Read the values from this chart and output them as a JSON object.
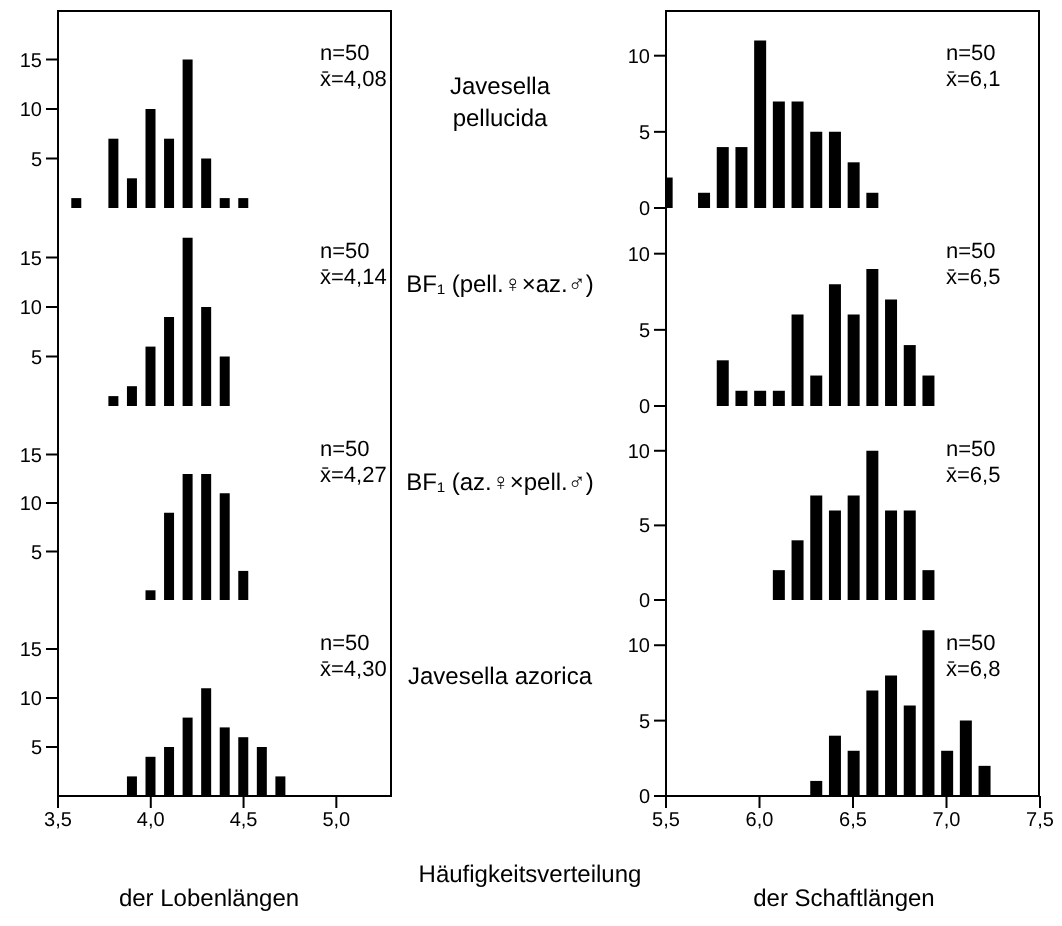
{
  "chart_data": [
    {
      "type": "bar",
      "annotations": [
        "n=50",
        "x̄=4,08"
      ],
      "x": [
        3.6,
        3.8,
        3.9,
        4.0,
        4.1,
        4.2,
        4.3,
        4.4,
        4.5
      ],
      "values": [
        1,
        7,
        3,
        10,
        7,
        15,
        5,
        1,
        1
      ],
      "color": "#000000",
      "xlim": [
        3.5,
        5.3
      ],
      "ylim": [
        0,
        20
      ],
      "yticks": [
        5,
        10,
        15
      ],
      "tick_labels": "y"
    },
    {
      "type": "bar",
      "title": "Javesella pellucida",
      "annotations": [
        "n=50",
        "x̄=6,1"
      ],
      "x": [
        5.5,
        5.7,
        5.8,
        5.9,
        6.0,
        6.1,
        6.2,
        6.3,
        6.4,
        6.5,
        6.6
      ],
      "values": [
        2,
        1,
        4,
        4,
        11,
        7,
        7,
        5,
        5,
        3,
        1
      ],
      "color": "#000000",
      "xlim": [
        5.5,
        7.5
      ],
      "ylim": [
        0,
        13
      ],
      "yticks": [
        0,
        5,
        10
      ],
      "tick_labels": "y"
    },
    {
      "type": "bar",
      "annotations": [
        "n=50",
        "x̄=4,14"
      ],
      "x": [
        3.8,
        3.9,
        4.0,
        4.1,
        4.2,
        4.3,
        4.4
      ],
      "values": [
        1,
        2,
        6,
        9,
        17,
        10,
        5
      ],
      "color": "#000000",
      "xlim": [
        3.5,
        5.3
      ],
      "ylim": [
        0,
        20
      ],
      "yticks": [
        5,
        10,
        15
      ],
      "tick_labels": "y"
    },
    {
      "type": "bar",
      "title": "BF₁ (pell.♀×az.♂)",
      "annotations": [
        "n=50",
        "x̄=6,5"
      ],
      "x": [
        5.8,
        5.9,
        6.0,
        6.1,
        6.2,
        6.3,
        6.4,
        6.5,
        6.6,
        6.7,
        6.8,
        6.9
      ],
      "values": [
        3,
        1,
        1,
        1,
        6,
        2,
        8,
        6,
        9,
        7,
        4,
        2
      ],
      "color": "#000000",
      "xlim": [
        5.5,
        7.5
      ],
      "ylim": [
        0,
        13
      ],
      "yticks": [
        0,
        5,
        10
      ],
      "tick_labels": "y"
    },
    {
      "type": "bar",
      "annotations": [
        "n=50",
        "x̄=4,27"
      ],
      "x": [
        4.0,
        4.1,
        4.2,
        4.3,
        4.4,
        4.5
      ],
      "values": [
        1,
        9,
        13,
        13,
        11,
        3
      ],
      "color": "#000000",
      "xlim": [
        3.5,
        5.3
      ],
      "ylim": [
        0,
        20
      ],
      "yticks": [
        5,
        10,
        15
      ],
      "tick_labels": "y"
    },
    {
      "type": "bar",
      "title": "BF₁ (az.♀×pell.♂)",
      "annotations": [
        "n=50",
        "x̄=6,5"
      ],
      "x": [
        6.1,
        6.2,
        6.3,
        6.4,
        6.5,
        6.6,
        6.7,
        6.8,
        6.9
      ],
      "values": [
        2,
        4,
        7,
        6,
        7,
        10,
        6,
        6,
        2
      ],
      "color": "#000000",
      "xlim": [
        5.5,
        7.5
      ],
      "ylim": [
        0,
        13
      ],
      "yticks": [
        0,
        5,
        10
      ],
      "tick_labels": "y"
    },
    {
      "type": "bar",
      "xlabel": "der Lobenlängen",
      "annotations": [
        "n=50",
        "x̄=4,30",
        "Häufigkeitsverteilung"
      ],
      "x": [
        3.9,
        4.0,
        4.1,
        4.2,
        4.3,
        4.4,
        4.5,
        4.6,
        4.7
      ],
      "values": [
        2,
        4,
        5,
        8,
        11,
        7,
        6,
        5,
        2
      ],
      "color": "#000000",
      "xlim": [
        3.5,
        5.3
      ],
      "ylim": [
        0,
        20
      ],
      "xticks": [
        {
          "value": 3.5,
          "label": "3,5"
        },
        {
          "value": 4.0,
          "label": "4,0"
        },
        {
          "value": 4.5,
          "label": "4,5"
        },
        {
          "value": 5.0,
          "label": "5,0"
        }
      ],
      "yticks": [
        5,
        10,
        15
      ]
    },
    {
      "type": "bar",
      "title": "Javesella azorica",
      "xlabel": "der Schaftlängen",
      "annotations": [
        "n=50",
        "x̄=6,8"
      ],
      "x": [
        6.3,
        6.4,
        6.5,
        6.6,
        6.7,
        6.8,
        6.9,
        7.0,
        7.1,
        7.2
      ],
      "values": [
        1,
        4,
        3,
        7,
        8,
        6,
        11,
        3,
        5,
        2
      ],
      "color": "#000000",
      "xlim": [
        5.5,
        7.5
      ],
      "ylim": [
        0,
        13
      ],
      "xticks": [
        {
          "value": 5.5,
          "label": "5,5"
        },
        {
          "value": 6.0,
          "label": "6,0"
        },
        {
          "value": 6.5,
          "label": "6,5"
        },
        {
          "value": 7.0,
          "label": "7,0"
        },
        {
          "value": 7.5,
          "label": "7,5"
        }
      ],
      "yticks": [
        0,
        5,
        10
      ]
    }
  ]
}
